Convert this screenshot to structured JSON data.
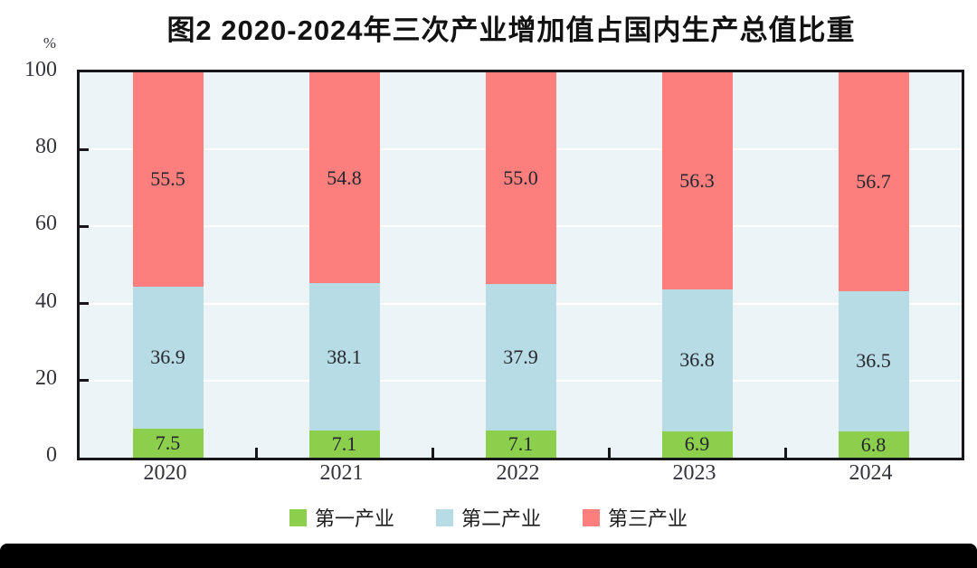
{
  "title": "图2  2020-2024年三次产业增加值占国内生产总值比重",
  "y_axis": {
    "unit": "%",
    "ticks": [
      100,
      80,
      60,
      40,
      20,
      0
    ]
  },
  "chart_data": {
    "type": "bar",
    "stacked": true,
    "title": "图2 2020-2024年三次产业增加值占国内生产总值比重",
    "categories": [
      "2020",
      "2021",
      "2022",
      "2023",
      "2024"
    ],
    "series": [
      {
        "name": "第一产业",
        "color": "#8CCF4D",
        "values": [
          7.5,
          7.1,
          7.1,
          6.9,
          6.8
        ]
      },
      {
        "name": "第二产业",
        "color": "#B7DCE6",
        "values": [
          36.9,
          38.1,
          37.9,
          36.8,
          36.5
        ]
      },
      {
        "name": "第三产业",
        "color": "#FD7F7D",
        "values": [
          55.5,
          54.8,
          55.0,
          56.3,
          56.7
        ]
      }
    ],
    "ylabel": "%",
    "ylim": [
      0,
      100
    ],
    "grid": true,
    "gridline_values": [
      20,
      40,
      60,
      80
    ],
    "legend_position": "bottom",
    "plot_background": "#ECF4F8",
    "gridline_color": "#FFFFFF",
    "axis_color": "#17171B"
  }
}
